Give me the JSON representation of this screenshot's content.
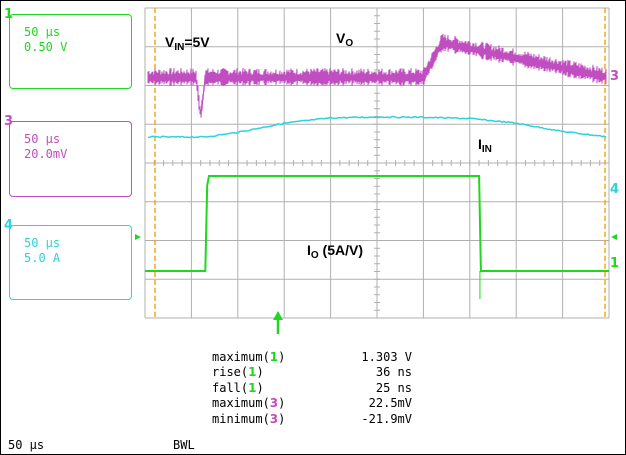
{
  "colors": {
    "ch1": "#1ed81e",
    "ch3": "#c04ec0",
    "ch4": "#2ed2dc",
    "cursor": "#f5a523",
    "grid": "#b0b0b0"
  },
  "channels": [
    {
      "num": "1",
      "time": "50 µs",
      "scale": "0.50 V",
      "color": "#1ed81e"
    },
    {
      "num": "3",
      "time": "50 µs",
      "scale": "20.0mV",
      "color": "#c04ec0"
    },
    {
      "num": "4",
      "time": "50 µs",
      "scale": "5.0 A",
      "color": "#2ed2dc"
    }
  ],
  "labels": {
    "vin_main": "V",
    "vin_sub": "IN",
    "vin_rest": "=5V",
    "vo_main": "V",
    "vo_sub": "O",
    "iin_main": "I",
    "iin_sub": "IN",
    "io_main": "I",
    "io_sub": "O",
    "io_rest": " (5A/V)"
  },
  "markers": {
    "ch3": "3",
    "ch4": "4",
    "ch1": "1"
  },
  "measurements": [
    {
      "name": "maximum(",
      "ch": "1",
      "close": ")",
      "value": "1.303 V",
      "color": "#1ed81e"
    },
    {
      "name": "rise(",
      "ch": "1",
      "close": ")",
      "value": "36 ns",
      "color": "#1ed81e"
    },
    {
      "name": "fall(",
      "ch": "1",
      "close": ")",
      "value": "25 ns",
      "color": "#1ed81e"
    },
    {
      "name": "maximum(",
      "ch": "3",
      "close": ")",
      "value": "22.5mV",
      "color": "#c04ec0"
    },
    {
      "name": "minimum(",
      "ch": "3",
      "close": ")",
      "value": "-21.9mV",
      "color": "#c04ec0"
    }
  ],
  "footer": {
    "timebase": "50 µs",
    "bwl": "BWL"
  },
  "chart_data": {
    "type": "line",
    "time_per_div_us": 50,
    "x_divisions": 10,
    "y_divisions": 8,
    "grid": true,
    "series": [
      {
        "name": "VO",
        "channel": "3",
        "scale": "20.0mV/div",
        "x_us": [
          0,
          55,
          60,
          65,
          300,
          320,
          500
        ],
        "values_mV": [
          0,
          0,
          -20,
          0,
          0,
          18,
          0
        ]
      },
      {
        "name": "IIN",
        "channel": "4",
        "scale": "5.0 A/div",
        "x_us": [
          0,
          65,
          100,
          150,
          200,
          250,
          300,
          350,
          400,
          450,
          500
        ],
        "values_A": [
          0,
          0,
          1.5,
          4.5,
          6.2,
          6.5,
          6.4,
          6.0,
          4.5,
          1.8,
          0
        ]
      },
      {
        "name": "IO (5A/V)",
        "channel": "1",
        "scale": "0.50 V/div",
        "x_us": [
          0,
          65,
          67,
          69,
          180,
          360,
          362,
          364,
          500
        ],
        "values_V": [
          0,
          0,
          1.1,
          1.22,
          1.22,
          1.22,
          0,
          0,
          0
        ]
      }
    ]
  }
}
